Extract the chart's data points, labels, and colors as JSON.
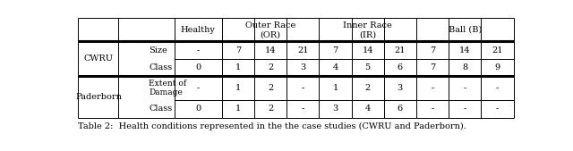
{
  "figsize": [
    6.4,
    1.69
  ],
  "dpi": 100,
  "caption": "Table 2:  Health conditions represented in the the case studies (CWRU and Paderborn).",
  "cwru_size": [
    "-",
    "7",
    "14",
    "21",
    "7",
    "14",
    "21",
    "7",
    "14",
    "21"
  ],
  "cwru_class": [
    "0",
    "1",
    "2",
    "3",
    "4",
    "5",
    "6",
    "7",
    "8",
    "9"
  ],
  "padb_extent": [
    "-",
    "1",
    "2",
    "-",
    "1",
    "2",
    "3",
    "-",
    "-",
    "-"
  ],
  "padb_class": [
    "0",
    "1",
    "2",
    "-",
    "3",
    "4",
    "6",
    "-",
    "-",
    "-"
  ],
  "background": "white",
  "line_color": "black",
  "text_color": "black",
  "font_size": 7.0,
  "caption_font_size": 7.0
}
